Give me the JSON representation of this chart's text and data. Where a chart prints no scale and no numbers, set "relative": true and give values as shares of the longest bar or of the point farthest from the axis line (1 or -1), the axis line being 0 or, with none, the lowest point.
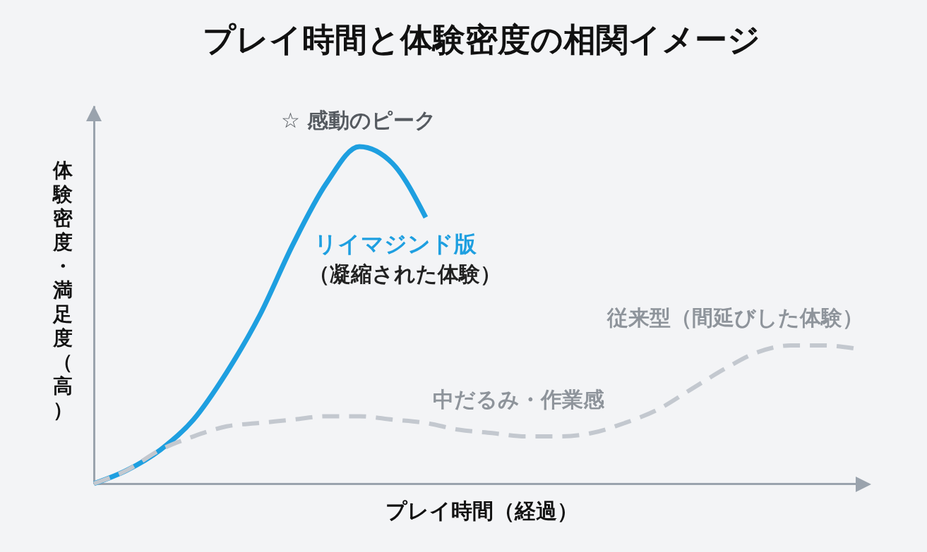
{
  "chart_data": {
    "type": "line",
    "title": "プレイ時間と体験密度の相関イメージ",
    "xlabel": "プレイ時間（経過）",
    "ylabel": "体験密度・満足度（高）",
    "relative": true,
    "categories": [
      null,
      null,
      null,
      null,
      null,
      null,
      null,
      null,
      null,
      null,
      null,
      null,
      null,
      null,
      null,
      null,
      null,
      null,
      null,
      null,
      null,
      null,
      null,
      null
    ],
    "series": [
      {
        "name": "リイマジンド版",
        "color": "#1e9fe0",
        "line_style": "solid",
        "values": [
          0,
          0.04,
          0.1,
          0.19,
          0.33,
          0.5,
          0.71,
          0.89,
          1,
          0.95,
          0.79,
          null,
          null,
          null,
          null,
          null,
          null,
          null,
          null,
          null,
          null,
          null,
          null,
          null
        ]
      },
      {
        "name": "従来型（間延びした体験）",
        "color": "#c3c8cf",
        "line_style": "dashed",
        "values": [
          0,
          0.04,
          0.1,
          0.14,
          0.17,
          0.18,
          0.19,
          0.2,
          0.2,
          0.19,
          0.18,
          0.16,
          0.15,
          0.14,
          0.14,
          0.15,
          0.18,
          0.22,
          0.28,
          0.34,
          0.39,
          0.41,
          0.41,
          0.4
        ]
      }
    ],
    "annotations": [
      "（凝縮された体験）",
      "☆ 感動のピーク",
      "中だるみ・作業感"
    ]
  }
}
